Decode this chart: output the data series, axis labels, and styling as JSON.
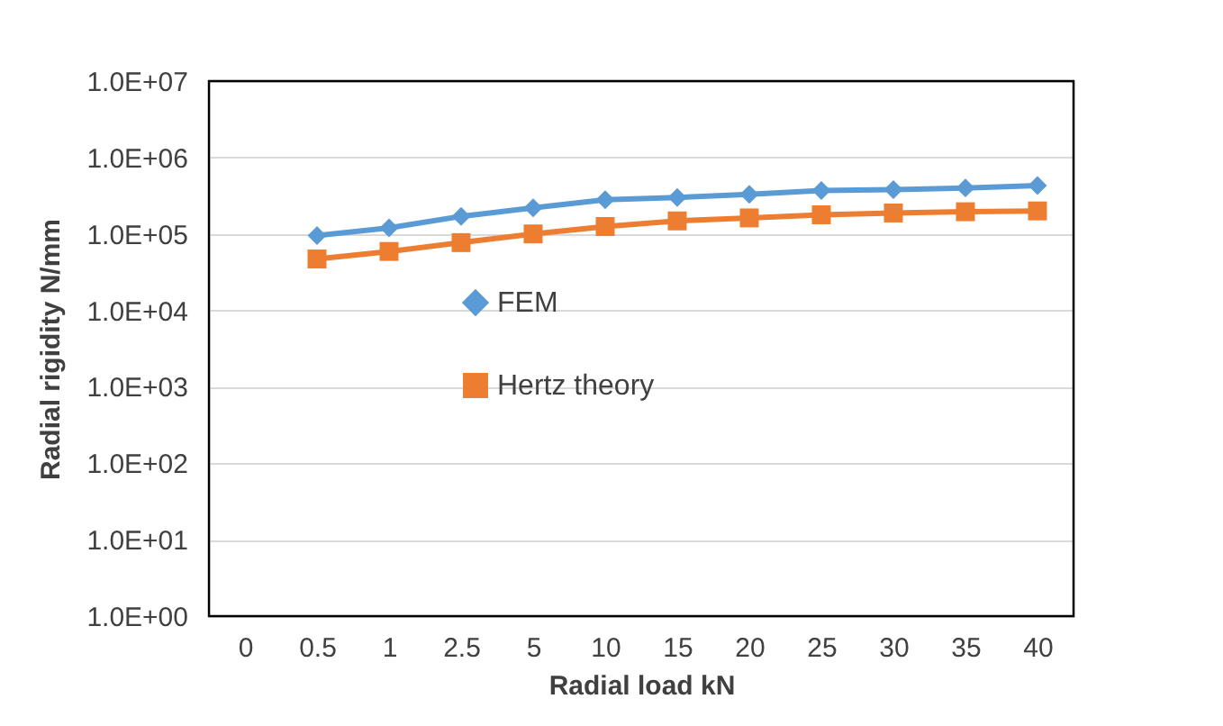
{
  "chart_data": {
    "type": "line",
    "xlabel": "Radial load  kN",
    "ylabel": "Radial rigidity  N/mm",
    "categories": [
      "0",
      "0.5",
      "1",
      "2.5",
      "5",
      "10",
      "15",
      "20",
      "25",
      "30",
      "35",
      "40"
    ],
    "series": [
      {
        "name": "FEM",
        "color": "#5b9bd5",
        "marker": "diamond",
        "values": [
          null,
          95000,
          120000,
          170000,
          220000,
          280000,
          300000,
          330000,
          370000,
          380000,
          400000,
          430000
        ]
      },
      {
        "name": "Hertz theory",
        "color": "#ed7d31",
        "marker": "square",
        "values": [
          null,
          47000,
          59000,
          77000,
          100000,
          125000,
          148000,
          162000,
          178000,
          188000,
          195000,
          200000
        ]
      }
    ],
    "log": "y",
    "ylim": [
      1,
      10000000
    ],
    "yticks": [
      {
        "value": 1,
        "label": "1.0E+00"
      },
      {
        "value": 10,
        "label": "1.0E+01"
      },
      {
        "value": 100,
        "label": "1.0E+02"
      },
      {
        "value": 1000,
        "label": "1.0E+03"
      },
      {
        "value": 10000,
        "label": "1.0E+04"
      },
      {
        "value": 100000,
        "label": "1.0E+05"
      },
      {
        "value": 1000000,
        "label": "1.0E+06"
      },
      {
        "value": 10000000,
        "label": "1.0E+07"
      }
    ],
    "grid": "y",
    "legend": "center"
  }
}
